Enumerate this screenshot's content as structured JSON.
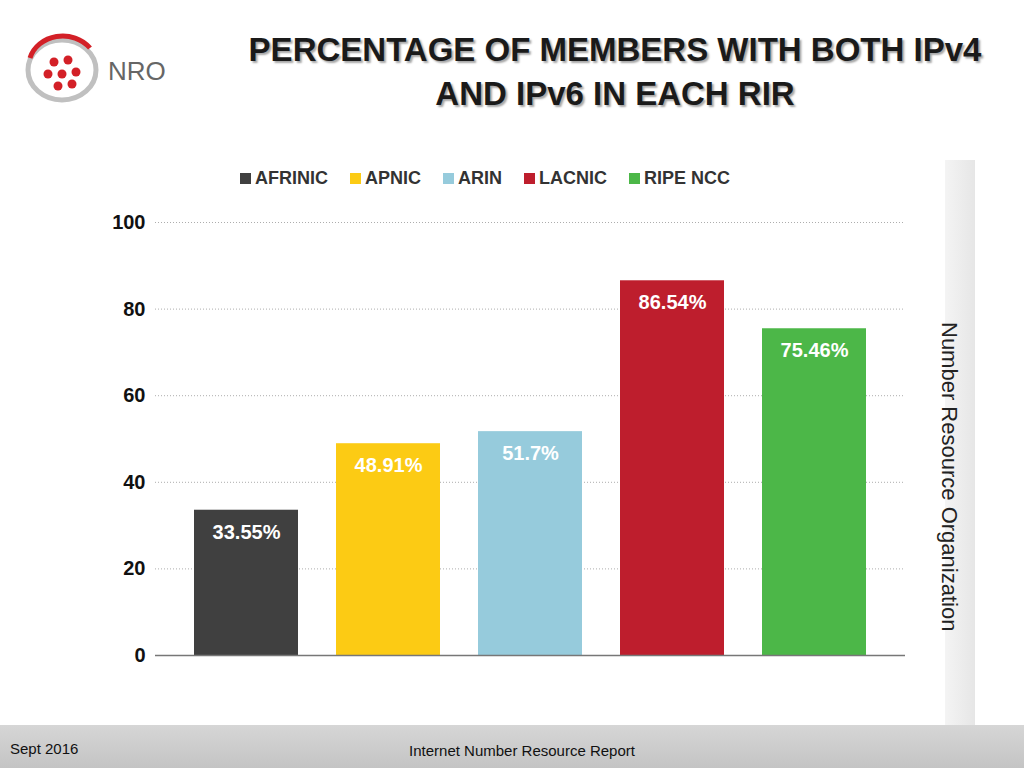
{
  "chart_data": {
    "type": "bar",
    "title": "PERCENTAGE OF MEMBERS WITH BOTH IPv4 AND IPv6 IN EACH RIR",
    "categories": [
      "AFRINIC",
      "APNIC",
      "ARIN",
      "LACNIC",
      "RIPE NCC"
    ],
    "values": [
      33.55,
      48.91,
      51.7,
      86.54,
      75.46
    ],
    "value_labels": [
      "33.55%",
      "48.91%",
      "51.7%",
      "86.54%",
      "75.46%"
    ],
    "colors": [
      "#404040",
      "#fccb14",
      "#96cbdc",
      "#be1e2d",
      "#4cb748"
    ],
    "ylim": [
      0,
      100
    ],
    "yticks": [
      0,
      20,
      40,
      60,
      80,
      100
    ],
    "grid": true,
    "legend": "top",
    "data_labels": true,
    "tick_labels": "y"
  },
  "page": {
    "logo": "NRO",
    "side_text": "Number Resource Organization",
    "footer_left": "Sept 2016",
    "footer_center": "Internet Number Resource Report"
  }
}
